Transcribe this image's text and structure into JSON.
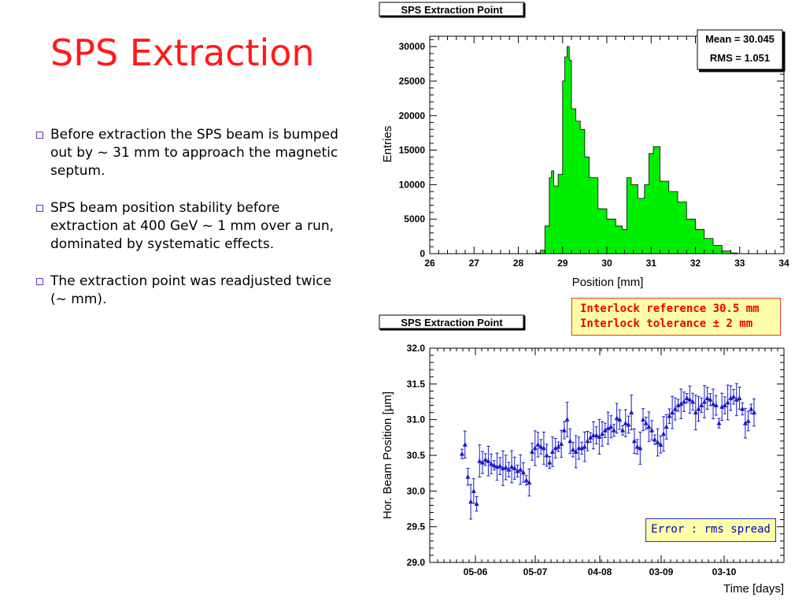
{
  "slide": {
    "title": "SPS Extraction",
    "bullets": [
      "Before extraction the SPS beam is bumped out by ~ 31 mm to approach the magnetic septum.",
      "SPS beam position stability before extraction at 400 GeV ~ 1 mm over a run, dominated by systematic effects.",
      "The extraction point was readjusted twice (~ mm)."
    ],
    "bullet_icon": "checkbox-square-icon",
    "title_color": "#ff1a1a",
    "bullet_icon_color": "#6633cc"
  },
  "chart_data": [
    {
      "type": "histogram",
      "title": "SPS Extraction Point",
      "xlabel": "Position [mm]",
      "ylabel": "Entries",
      "xlim": [
        26,
        34
      ],
      "ylim": [
        0,
        31500
      ],
      "xticks": [
        "26",
        "27",
        "28",
        "29",
        "30",
        "31",
        "32",
        "33",
        "34"
      ],
      "yticks": [
        "0",
        "5000",
        "10000",
        "15000",
        "20000",
        "25000",
        "30000"
      ],
      "stats": {
        "mean_label": "Mean = 30.045",
        "rms_label": "RMS = 1.051"
      },
      "fill_color": "#00ee00",
      "x": [
        28.2,
        28.4,
        28.5,
        28.6,
        28.7,
        28.75,
        28.8,
        28.9,
        29.0,
        29.05,
        29.1,
        29.15,
        29.2,
        29.3,
        29.4,
        29.5,
        29.6,
        29.8,
        30.0,
        30.2,
        30.35,
        30.45,
        30.5,
        30.55,
        30.7,
        30.85,
        30.95,
        31.05,
        31.2,
        31.4,
        31.6,
        31.8,
        32.0,
        32.2,
        32.4,
        32.6,
        32.8,
        32.95,
        33.1
      ],
      "y": [
        0,
        100,
        500,
        4000,
        11000,
        12000,
        9800,
        11500,
        25000,
        28500,
        30000,
        28000,
        21000,
        19200,
        18000,
        14000,
        11000,
        6500,
        5000,
        4000,
        3500,
        11000,
        11000,
        10000,
        8000,
        10000,
        14500,
        15500,
        10500,
        9000,
        7500,
        5000,
        3500,
        2200,
        1200,
        400,
        100,
        0,
        0
      ]
    },
    {
      "type": "scatter",
      "title": "SPS Extraction Point",
      "xlabel": "Time [days]",
      "ylabel": "Hor. Beam Position [µm]",
      "ylim": [
        29.0,
        32.0
      ],
      "yticks": [
        "29.0",
        "29.5",
        "30.0",
        "30.5",
        "31.0",
        "31.5",
        "32.0"
      ],
      "xticks": [
        "05-06",
        "05-07",
        "04-08",
        "03-09",
        "03-10"
      ],
      "marker_color": "#1a1acc",
      "annotations": {
        "interlock_reference": "Interlock reference 30.5 mm",
        "interlock_tolerance": "Interlock tolerance ± 2 mm",
        "error_note": "Error : rms spread"
      },
      "x": [
        0.0,
        0.01,
        0.02,
        0.03,
        0.04,
        0.05,
        0.06,
        0.07,
        0.08,
        0.09,
        0.1,
        0.11,
        0.12,
        0.13,
        0.14,
        0.15,
        0.16,
        0.17,
        0.18,
        0.19,
        0.2,
        0.21,
        0.22,
        0.23,
        0.24,
        0.25,
        0.26,
        0.27,
        0.28,
        0.29,
        0.3,
        0.31,
        0.32,
        0.33,
        0.34,
        0.35,
        0.36,
        0.37,
        0.38,
        0.39,
        0.4,
        0.41,
        0.42,
        0.43,
        0.44,
        0.45,
        0.46,
        0.47,
        0.48,
        0.49,
        0.5,
        0.51,
        0.52,
        0.53,
        0.54,
        0.55,
        0.56,
        0.57,
        0.58,
        0.59,
        0.6,
        0.61,
        0.62,
        0.63,
        0.64,
        0.65,
        0.66,
        0.67,
        0.68,
        0.69,
        0.7,
        0.71,
        0.72,
        0.73,
        0.74,
        0.75,
        0.76,
        0.77,
        0.78,
        0.79,
        0.8,
        0.81,
        0.82,
        0.83,
        0.84,
        0.85,
        0.86,
        0.87,
        0.88,
        0.89,
        0.9,
        0.91,
        0.92,
        0.93,
        0.94,
        0.95,
        0.96,
        0.97,
        0.98,
        0.99,
        1.0
      ],
      "y": [
        30.52,
        30.65,
        30.2,
        29.85,
        30.0,
        29.82,
        30.42,
        30.4,
        30.44,
        30.42,
        30.38,
        30.36,
        30.34,
        30.35,
        30.32,
        30.33,
        30.3,
        30.34,
        30.32,
        30.28,
        30.3,
        30.26,
        30.15,
        30.12,
        30.55,
        30.6,
        30.65,
        30.62,
        30.6,
        30.5,
        30.4,
        30.55,
        30.6,
        30.62,
        30.66,
        30.85,
        31.0,
        30.7,
        30.58,
        30.55,
        30.6,
        30.6,
        30.62,
        30.7,
        30.75,
        30.78,
        30.78,
        30.76,
        30.8,
        30.85,
        30.88,
        30.9,
        30.85,
        31.02,
        31.0,
        30.85,
        30.95,
        30.93,
        31.1,
        30.7,
        30.62,
        30.6,
        31.0,
        30.95,
        30.9,
        30.85,
        30.72,
        30.68,
        30.65,
        30.8,
        30.9,
        31.05,
        31.1,
        31.15,
        31.2,
        31.22,
        31.25,
        31.3,
        31.28,
        31.25,
        31.1,
        31.15,
        31.2,
        31.25,
        31.3,
        31.28,
        31.22,
        31.2,
        30.95,
        31.18,
        31.2,
        31.24,
        31.3,
        31.32,
        31.28,
        31.3,
        31.15,
        30.95,
        30.98,
        31.15,
        31.1
      ]
    }
  ]
}
